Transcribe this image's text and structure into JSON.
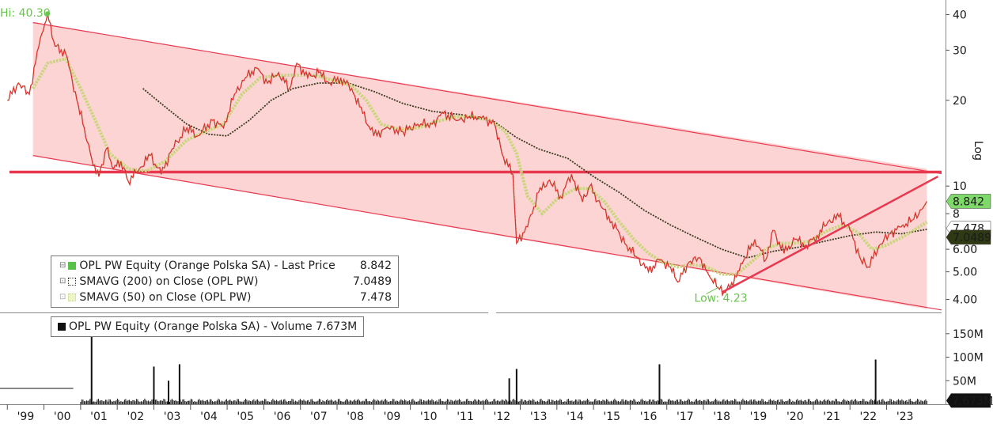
{
  "chart_data": {
    "type": "line",
    "y_scale": "log",
    "y_scale_label": "Log",
    "x_tick_labels": [
      "'99",
      "'00",
      "'01",
      "'02",
      "'03",
      "'04",
      "'05",
      "'06",
      "'07",
      "'08",
      "'09",
      "'10",
      "'11",
      "'12",
      "'13",
      "'14",
      "'15",
      "'16",
      "'17",
      "'18",
      "'19",
      "'20",
      "'21",
      "'22",
      "'23"
    ],
    "y_tick_labels": [
      "4.00",
      "5.00",
      "6.00",
      "8",
      "10",
      "20",
      "30",
      "40"
    ],
    "ylim": [
      3.6,
      45
    ],
    "annotations": {
      "high": "Hi: 40.30",
      "low": "Low: 4.23"
    },
    "price_series": {
      "name": "OPL PW Equity (Orange Polska SA) - Last Price",
      "last_value": "8.842",
      "color": "#d9302f",
      "points": [
        [
          "1999.0",
          20
        ],
        [
          "1999.3",
          23
        ],
        [
          "1999.6",
          21
        ],
        [
          "1999.9",
          33
        ],
        [
          "2000.1",
          40.3
        ],
        [
          "2000.3",
          31
        ],
        [
          "2000.6",
          29
        ],
        [
          "2000.9",
          20
        ],
        [
          "2001.1",
          16
        ],
        [
          "2001.3",
          12.5
        ],
        [
          "2001.5",
          10.8
        ],
        [
          "2001.7",
          13.5
        ],
        [
          "2001.9",
          11.5
        ],
        [
          "2002.1",
          12.2
        ],
        [
          "2002.3",
          10.4
        ],
        [
          "2002.6",
          11.5
        ],
        [
          "2002.9",
          12.8
        ],
        [
          "2003.2",
          11.0
        ],
        [
          "2003.5",
          13.5
        ],
        [
          "2003.9",
          16
        ],
        [
          "2004.2",
          15
        ],
        [
          "2004.6",
          17
        ],
        [
          "2004.9",
          16
        ],
        [
          "2005.2",
          21
        ],
        [
          "2005.5",
          24
        ],
        [
          "2005.8",
          26
        ],
        [
          "2006.1",
          23
        ],
        [
          "2006.4",
          25
        ],
        [
          "2006.7",
          22
        ],
        [
          "2006.9",
          27
        ],
        [
          "2007.2",
          24
        ],
        [
          "2007.5",
          25
        ],
        [
          "2007.8",
          23
        ],
        [
          "2008.1",
          24
        ],
        [
          "2008.4",
          22
        ],
        [
          "2008.7",
          18
        ],
        [
          "2009.0",
          15
        ],
        [
          "2009.4",
          16
        ],
        [
          "2009.8",
          15.5
        ],
        [
          "2010.2",
          16.5
        ],
        [
          "2010.6",
          16.5
        ],
        [
          "2010.9",
          18
        ],
        [
          "2011.3",
          17
        ],
        [
          "2011.6",
          17.5
        ],
        [
          "2011.9",
          17.5
        ],
        [
          "2012.3",
          16.5
        ],
        [
          "2012.5",
          13
        ],
        [
          "2012.8",
          11
        ],
        [
          "2012.9",
          6.3
        ],
        [
          "2013.2",
          7.2
        ],
        [
          "2013.5",
          9.5
        ],
        [
          "2013.8",
          10.5
        ],
        [
          "2014.1",
          9.2
        ],
        [
          "2014.4",
          11
        ],
        [
          "2014.7",
          8.8
        ],
        [
          "2014.9",
          10
        ],
        [
          "2015.2",
          8.5
        ],
        [
          "2015.5",
          7.5
        ],
        [
          "2015.9",
          6.2
        ],
        [
          "2016.2",
          5.6
        ],
        [
          "2016.5",
          5.0
        ],
        [
          "2016.8",
          5.5
        ],
        [
          "2017.1",
          5.2
        ],
        [
          "2017.3",
          4.6
        ],
        [
          "2017.6",
          5.4
        ],
        [
          "2017.9",
          5.6
        ],
        [
          "2018.1",
          5.0
        ],
        [
          "2018.4",
          4.4
        ],
        [
          "2018.6",
          4.23
        ],
        [
          "2018.9",
          4.8
        ],
        [
          "2019.1",
          5.5
        ],
        [
          "2019.4",
          6.5
        ],
        [
          "2019.7",
          5.5
        ],
        [
          "2019.9",
          7.0
        ],
        [
          "2020.2",
          5.8
        ],
        [
          "2020.5",
          6.5
        ],
        [
          "2020.8",
          6.2
        ],
        [
          "2021.1",
          6.7
        ],
        [
          "2021.4",
          7.5
        ],
        [
          "2021.7",
          7.8
        ],
        [
          "2022.0",
          7.0
        ],
        [
          "2022.3",
          5.5
        ],
        [
          "2022.5",
          5.2
        ],
        [
          "2022.8",
          6.2
        ],
        [
          "2023.1",
          6.8
        ],
        [
          "2023.4",
          7.2
        ],
        [
          "2023.7",
          7.6
        ],
        [
          "2024.0",
          8.4
        ],
        [
          "2024.1",
          8.842
        ]
      ]
    },
    "sma200_series": {
      "name": "SMAVG (200)  on Close (OPL PW)",
      "last_value": "7.0489",
      "color": "#3a3a1e",
      "points": [
        [
          "2002.7",
          22
        ],
        [
          "2003.3",
          19
        ],
        [
          "2003.9",
          16.5
        ],
        [
          "2004.5",
          15.2
        ],
        [
          "2005.0",
          15.0
        ],
        [
          "2005.6",
          17
        ],
        [
          "2006.2",
          20
        ],
        [
          "2006.8",
          22
        ],
        [
          "2007.5",
          23
        ],
        [
          "2008.3",
          23
        ],
        [
          "2009.0",
          21.5
        ],
        [
          "2009.8",
          19.5
        ],
        [
          "2010.6",
          18.3
        ],
        [
          "2011.4",
          17.8
        ],
        [
          "2012.3",
          16.8
        ],
        [
          "2012.9",
          14.8
        ],
        [
          "2013.5",
          13.5
        ],
        [
          "2014.3",
          12.5
        ],
        [
          "2015.0",
          10.8
        ],
        [
          "2015.7",
          9.5
        ],
        [
          "2016.4",
          8.2
        ],
        [
          "2017.1",
          7.3
        ],
        [
          "2017.8",
          6.6
        ],
        [
          "2018.5",
          6.0
        ],
        [
          "2019.2",
          5.6
        ],
        [
          "2019.9",
          5.9
        ],
        [
          "2020.6",
          6.1
        ],
        [
          "2021.3",
          6.4
        ],
        [
          "2022.0",
          6.7
        ],
        [
          "2022.7",
          6.9
        ],
        [
          "2023.4",
          6.8
        ],
        [
          "2024.1",
          7.0489
        ]
      ]
    },
    "sma50_series": {
      "name": "SMAVG (50)  on Close (OPL PW)",
      "last_value": "7.478",
      "color": "#c8d67a",
      "points": [
        [
          "1999.7",
          22
        ],
        [
          "2000.1",
          27
        ],
        [
          "2000.6",
          28
        ],
        [
          "2001.0",
          22
        ],
        [
          "2001.4",
          17
        ],
        [
          "2001.8",
          13
        ],
        [
          "2002.3",
          11.5
        ],
        [
          "2002.8",
          11.3
        ],
        [
          "2003.3",
          12.2
        ],
        [
          "2003.9",
          14.5
        ],
        [
          "2004.4",
          15.5
        ],
        [
          "2004.9",
          16.5
        ],
        [
          "2005.4",
          21
        ],
        [
          "2005.9",
          24
        ],
        [
          "2006.4",
          24.5
        ],
        [
          "2006.9",
          24.5
        ],
        [
          "2007.4",
          24.5
        ],
        [
          "2007.9",
          23.5
        ],
        [
          "2008.4",
          22.5
        ],
        [
          "2008.8",
          20
        ],
        [
          "2009.2",
          16.5
        ],
        [
          "2009.7",
          15.8
        ],
        [
          "2010.2",
          16
        ],
        [
          "2010.7",
          16.8
        ],
        [
          "2011.2",
          17.5
        ],
        [
          "2011.7",
          17.5
        ],
        [
          "2012.2",
          17
        ],
        [
          "2012.6",
          15.5
        ],
        [
          "2012.9",
          13
        ],
        [
          "2013.2",
          9.2
        ],
        [
          "2013.6",
          8.0
        ],
        [
          "2014.0",
          9.0
        ],
        [
          "2014.5",
          9.8
        ],
        [
          "2014.9",
          9.8
        ],
        [
          "2015.3",
          8.8
        ],
        [
          "2015.7",
          7.5
        ],
        [
          "2016.1",
          6.5
        ],
        [
          "2016.5",
          5.8
        ],
        [
          "2016.9",
          5.4
        ],
        [
          "2017.3",
          5.2
        ],
        [
          "2017.7",
          5.3
        ],
        [
          "2018.1",
          5.2
        ],
        [
          "2018.5",
          4.9
        ],
        [
          "2018.9",
          4.9
        ],
        [
          "2019.3",
          5.4
        ],
        [
          "2019.7",
          6.0
        ],
        [
          "2020.1",
          6.3
        ],
        [
          "2020.5",
          6.3
        ],
        [
          "2020.9",
          6.4
        ],
        [
          "2021.4",
          7.0
        ],
        [
          "2021.8",
          7.3
        ],
        [
          "2022.2",
          6.9
        ],
        [
          "2022.6",
          6.0
        ],
        [
          "2023.0",
          6.2
        ],
        [
          "2023.5",
          6.7
        ],
        [
          "2024.1",
          7.478
        ]
      ]
    },
    "volume": {
      "name": "OPL PW Equity (Orange Polska SA) - Volume",
      "last_value": "7.673M",
      "unit": "M",
      "y_tick_labels": [
        "50M",
        "100M",
        "150M"
      ],
      "ylim": [
        0,
        190
      ],
      "spikes": [
        [
          "2001.3",
          160
        ],
        [
          "2003.0",
          80
        ],
        [
          "2003.4",
          50
        ],
        [
          "2003.7",
          85
        ],
        [
          "2012.7",
          55
        ],
        [
          "2012.9",
          75
        ],
        [
          "2016.8",
          85
        ],
        [
          "2022.7",
          95
        ]
      ],
      "baseline": 5
    },
    "overlay": {
      "channel_start": [
        "1999.7",
        37.5,
        12.8
      ],
      "channel_end": [
        "2024.1",
        11.5,
        3.7
      ],
      "horizontal_line": 11.2,
      "trendline": [
        [
          "2018.5",
          4.23
        ],
        [
          "2024.4",
          10.8
        ]
      ],
      "channel_fill": "#fdd4d4",
      "line_color": "#e8384f"
    },
    "legend_price": [
      {
        "label": "OPL PW Equity (Orange Polska SA) - Last Price",
        "value": "8.842",
        "swatch": "#59c04a",
        "marker": "⊟"
      },
      {
        "label": "SMAVG (200)  on Close (OPL PW)",
        "value": "7.0489",
        "swatch": "#3a3a1e",
        "marker": "⊡"
      },
      {
        "label": "SMAVG (50)  on Close (OPL PW)",
        "value": "7.478",
        "swatch": "#c8d67a",
        "marker": "⊡"
      }
    ],
    "legend_volume": {
      "label": "OPL PW Equity (Orange Polska SA) - Volume 7.673M",
      "swatch": "#111111"
    },
    "value_tags": [
      {
        "text": "8.842",
        "bg": "#7fd86a",
        "color": "#000000"
      },
      {
        "text": "7.478",
        "bg": "#ffffff",
        "color": "#333333"
      },
      {
        "text": "7.0489",
        "bg": "#2f3a14",
        "color": "#ffffff"
      }
    ],
    "volume_tag": {
      "text": "7.673M",
      "bg": "#111111",
      "color": "#ffffff"
    }
  }
}
